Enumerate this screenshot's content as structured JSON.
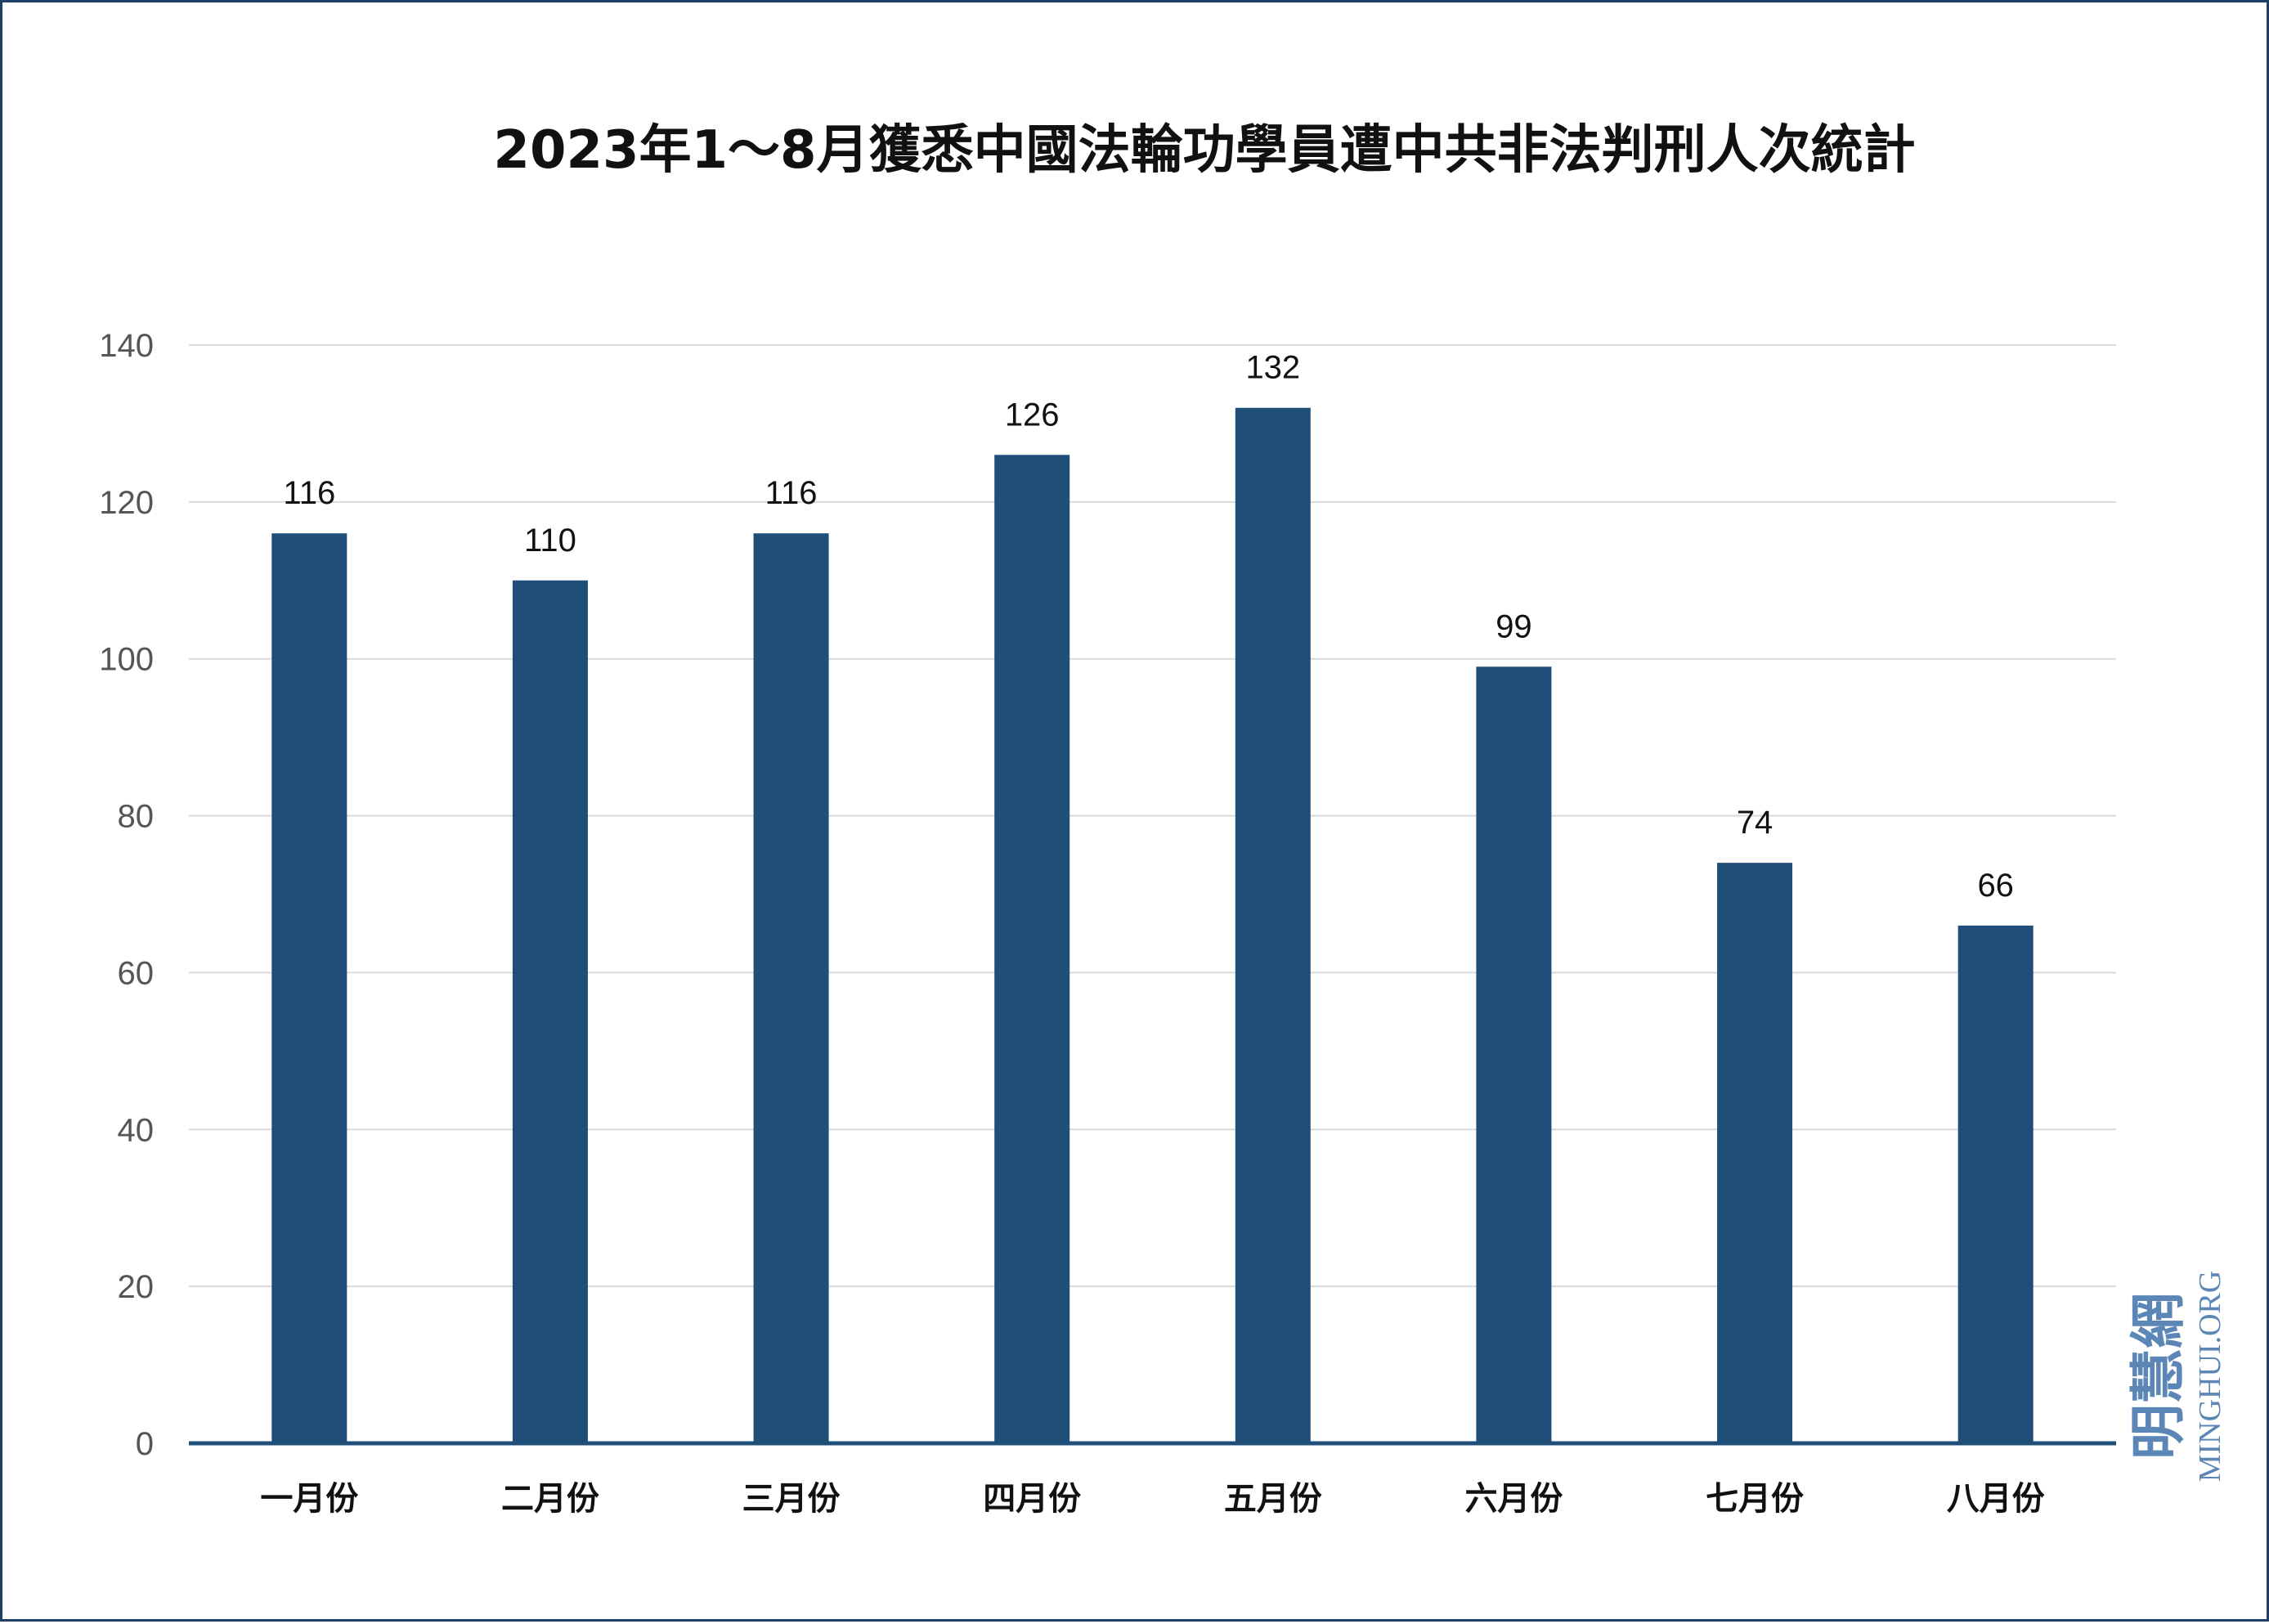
{
  "chart_data": {
    "type": "bar",
    "title": "2023年1～8月獲悉中國法輪功學員遭中共非法判刑人次統計",
    "categories": [
      "一月份",
      "二月份",
      "三月份",
      "四月份",
      "五月份",
      "六月份",
      "七月份",
      "八月份"
    ],
    "values": [
      116,
      110,
      116,
      126,
      132,
      99,
      74,
      66
    ],
    "ylim": [
      0,
      140
    ],
    "yticks": [
      0,
      20,
      40,
      60,
      80,
      100,
      120,
      140
    ],
    "grid": true,
    "data_labels": true,
    "bar_color": "#1f4e79",
    "axis_color": "#1f4e79",
    "grid_color": "#d9d9d9"
  },
  "watermark": {
    "chinese": "明慧網",
    "english": "MINGHUI.ORG",
    "color": "#5b86b5"
  }
}
